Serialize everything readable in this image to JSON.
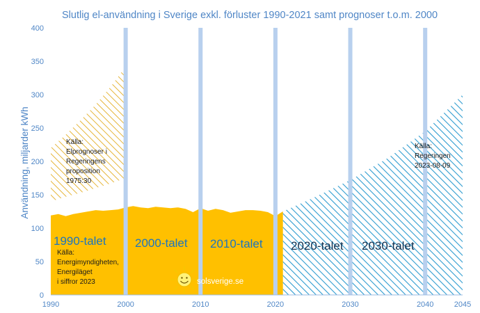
{
  "chart_data": {
    "type": "area",
    "title": "Slutlig el-användning i Sverige exkl. förluster 1990-2021 samt prognoser t.o.m. 2000",
    "ylabel": "Användning, miljarder kWh",
    "xlabel": "",
    "xlim": [
      1990,
      2045
    ],
    "ylim": [
      0,
      400
    ],
    "x_ticks": [
      1990,
      2000,
      2010,
      2020,
      2030,
      2040,
      2045
    ],
    "y_ticks": [
      0,
      50,
      100,
      150,
      200,
      250,
      300,
      350,
      400
    ],
    "grid": false,
    "colors": {
      "actual": "#ffc000",
      "prognosis_1975": "#e6b63a",
      "prognosis_2023": "#2e9cd0",
      "decade_lines": "#b8d0ee",
      "axis_text": "#4f86c6"
    },
    "series": [
      {
        "x": [
          1990,
          1991,
          1992,
          1993,
          1994,
          1995,
          1996,
          1997,
          1998,
          1999,
          2000,
          2001,
          2002,
          2003,
          2004,
          2005,
          2006,
          2007,
          2008,
          2009,
          2010,
          2011,
          2012,
          2013,
          2014,
          2015,
          2016,
          2017,
          2018,
          2019,
          2020,
          2021
        ],
        "values": [
          119,
          121,
          118,
          121,
          123,
          125,
          127,
          126,
          127,
          128,
          131,
          133,
          131,
          130,
          132,
          131,
          130,
          131,
          129,
          124,
          130,
          126,
          129,
          127,
          123,
          125,
          127,
          127,
          126,
          124,
          118,
          125
        ]
      },
      {
        "x": [
          1990,
          1992,
          1994,
          1996,
          1998,
          2000
        ],
        "lower": [
          140,
          147,
          153,
          160,
          167,
          175
        ],
        "upper": [
          220,
          240,
          262,
          285,
          312,
          342
        ]
      },
      {
        "x": [
          2021,
          2025,
          2030,
          2035,
          2040,
          2045
        ],
        "values": [
          125,
          145,
          172,
          205,
          245,
          300
        ]
      }
    ],
    "decade_labels": [
      "1990-talet",
      "2000-talet",
      "2010-talet",
      "2020-talet",
      "2030-talet"
    ],
    "annotations": {
      "source_1975": [
        "Källa:",
        "Elprognoser i",
        "Regeringens",
        "proposition",
        "1975:30"
      ],
      "source_actual": [
        "Källa:",
        "Energimyndigheten,",
        "Energiläget",
        "i siffror 2023"
      ],
      "source_2023": [
        "Källa:",
        "Regeringen",
        "2023-08-09"
      ],
      "watermark": "solsverige.se"
    }
  }
}
